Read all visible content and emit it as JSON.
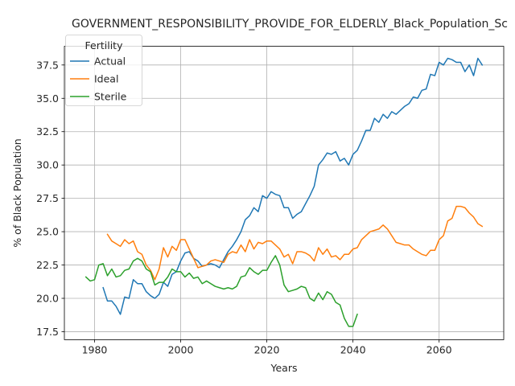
{
  "chart_data": {
    "type": "line",
    "title": "GOVERNMENT_RESPONSIBILITY_PROVIDE_FOR_ELDERLY_Black_Population_Sc",
    "xlabel": "Years",
    "ylabel": "% of Black Population",
    "xlim": [
      1973,
      2075
    ],
    "ylim": [
      16.9,
      38.9
    ],
    "x_ticks": [
      1980,
      2000,
      2020,
      2040,
      2060
    ],
    "x_tick_labels": [
      "1980",
      "2000",
      "2020",
      "2040",
      "2060"
    ],
    "y_ticks": [
      17.5,
      20.0,
      22.5,
      25.0,
      27.5,
      30.0,
      32.5,
      35.0,
      37.5
    ],
    "y_tick_labels": [
      "17.5",
      "20.0",
      "22.5",
      "25.0",
      "27.5",
      "30.0",
      "32.5",
      "35.0",
      "37.5"
    ],
    "grid": true,
    "legend": {
      "title": "Fertility",
      "placement": "top-left"
    },
    "series": [
      {
        "name": "Actual",
        "color": "#1f77b4",
        "points": [
          [
            1982,
            20.8
          ],
          [
            1983,
            19.8
          ],
          [
            1984,
            19.8
          ],
          [
            1985,
            19.4
          ],
          [
            1986,
            18.8
          ],
          [
            1987,
            20.1
          ],
          [
            1988,
            20.0
          ],
          [
            1989,
            21.4
          ],
          [
            1990,
            21.1
          ],
          [
            1991,
            21.1
          ],
          [
            1992,
            20.5
          ],
          [
            1993,
            20.2
          ],
          [
            1994,
            20.0
          ],
          [
            1995,
            20.3
          ],
          [
            1996,
            21.2
          ],
          [
            1997,
            20.9
          ],
          [
            1998,
            21.8
          ],
          [
            1999,
            22.0
          ],
          [
            2000,
            22.8
          ],
          [
            2001,
            23.4
          ],
          [
            2002,
            23.5
          ],
          [
            2003,
            23.0
          ],
          [
            2004,
            22.8
          ],
          [
            2005,
            22.4
          ],
          [
            2006,
            22.5
          ],
          [
            2007,
            22.6
          ],
          [
            2008,
            22.5
          ],
          [
            2009,
            22.3
          ],
          [
            2010,
            22.9
          ],
          [
            2011,
            23.5
          ],
          [
            2012,
            23.9
          ],
          [
            2013,
            24.4
          ],
          [
            2014,
            25.0
          ],
          [
            2015,
            25.9
          ],
          [
            2016,
            26.2
          ],
          [
            2017,
            26.8
          ],
          [
            2018,
            26.5
          ],
          [
            2019,
            27.7
          ],
          [
            2020,
            27.5
          ],
          [
            2021,
            28.0
          ],
          [
            2022,
            27.8
          ],
          [
            2023,
            27.7
          ],
          [
            2024,
            26.8
          ],
          [
            2025,
            26.8
          ],
          [
            2026,
            26.0
          ],
          [
            2027,
            26.3
          ],
          [
            2028,
            26.5
          ],
          [
            2029,
            27.1
          ],
          [
            2030,
            27.7
          ],
          [
            2031,
            28.4
          ],
          [
            2032,
            30.0
          ],
          [
            2033,
            30.4
          ],
          [
            2034,
            30.9
          ],
          [
            2035,
            30.8
          ],
          [
            2036,
            31.0
          ],
          [
            2037,
            30.3
          ],
          [
            2038,
            30.5
          ],
          [
            2039,
            30.0
          ],
          [
            2040,
            30.8
          ],
          [
            2041,
            31.1
          ],
          [
            2042,
            31.8
          ],
          [
            2043,
            32.6
          ],
          [
            2044,
            32.6
          ],
          [
            2045,
            33.5
          ],
          [
            2046,
            33.2
          ],
          [
            2047,
            33.8
          ],
          [
            2048,
            33.5
          ],
          [
            2049,
            34.0
          ],
          [
            2050,
            33.8
          ],
          [
            2051,
            34.1
          ],
          [
            2052,
            34.4
          ],
          [
            2053,
            34.6
          ],
          [
            2054,
            35.1
          ],
          [
            2055,
            35.0
          ],
          [
            2056,
            35.6
          ],
          [
            2057,
            35.7
          ],
          [
            2058,
            36.8
          ],
          [
            2059,
            36.7
          ],
          [
            2060,
            37.7
          ],
          [
            2061,
            37.5
          ],
          [
            2062,
            38.0
          ],
          [
            2063,
            37.9
          ],
          [
            2064,
            37.7
          ],
          [
            2065,
            37.7
          ],
          [
            2066,
            37.0
          ],
          [
            2067,
            37.5
          ],
          [
            2068,
            36.7
          ],
          [
            2069,
            38.0
          ],
          [
            2070,
            37.5
          ]
        ]
      },
      {
        "name": "Ideal",
        "color": "#ff7f0e",
        "points": [
          [
            1983,
            24.8
          ],
          [
            1984,
            24.3
          ],
          [
            1985,
            24.1
          ],
          [
            1986,
            23.9
          ],
          [
            1987,
            24.4
          ],
          [
            1988,
            24.1
          ],
          [
            1989,
            24.3
          ],
          [
            1990,
            23.5
          ],
          [
            1991,
            23.3
          ],
          [
            1992,
            22.5
          ],
          [
            1993,
            22.1
          ],
          [
            1994,
            21.4
          ],
          [
            1995,
            22.2
          ],
          [
            1996,
            23.8
          ],
          [
            1997,
            23.1
          ],
          [
            1998,
            23.9
          ],
          [
            1999,
            23.6
          ],
          [
            2000,
            24.4
          ],
          [
            2001,
            24.4
          ],
          [
            2002,
            23.7
          ],
          [
            2003,
            23.0
          ],
          [
            2004,
            22.3
          ],
          [
            2005,
            22.4
          ],
          [
            2006,
            22.5
          ],
          [
            2007,
            22.8
          ],
          [
            2008,
            22.9
          ],
          [
            2009,
            22.8
          ],
          [
            2010,
            22.7
          ],
          [
            2011,
            23.3
          ],
          [
            2012,
            23.5
          ],
          [
            2013,
            23.4
          ],
          [
            2014,
            24.0
          ],
          [
            2015,
            23.5
          ],
          [
            2016,
            24.4
          ],
          [
            2017,
            23.7
          ],
          [
            2018,
            24.2
          ],
          [
            2019,
            24.1
          ],
          [
            2020,
            24.3
          ],
          [
            2021,
            24.3
          ],
          [
            2022,
            24.0
          ],
          [
            2023,
            23.7
          ],
          [
            2024,
            23.1
          ],
          [
            2025,
            23.3
          ],
          [
            2026,
            22.6
          ],
          [
            2027,
            23.5
          ],
          [
            2028,
            23.5
          ],
          [
            2029,
            23.4
          ],
          [
            2030,
            23.2
          ],
          [
            2031,
            22.8
          ],
          [
            2032,
            23.8
          ],
          [
            2033,
            23.3
          ],
          [
            2034,
            23.7
          ],
          [
            2035,
            23.1
          ],
          [
            2036,
            23.2
          ],
          [
            2037,
            22.9
          ],
          [
            2038,
            23.3
          ],
          [
            2039,
            23.3
          ],
          [
            2040,
            23.7
          ],
          [
            2041,
            23.8
          ],
          [
            2042,
            24.4
          ],
          [
            2043,
            24.7
          ],
          [
            2044,
            25.0
          ],
          [
            2045,
            25.1
          ],
          [
            2046,
            25.2
          ],
          [
            2047,
            25.5
          ],
          [
            2048,
            25.2
          ],
          [
            2049,
            24.7
          ],
          [
            2050,
            24.2
          ],
          [
            2051,
            24.1
          ],
          [
            2052,
            24.0
          ],
          [
            2053,
            24.0
          ],
          [
            2054,
            23.7
          ],
          [
            2055,
            23.5
          ],
          [
            2056,
            23.3
          ],
          [
            2057,
            23.2
          ],
          [
            2058,
            23.6
          ],
          [
            2059,
            23.6
          ],
          [
            2060,
            24.4
          ],
          [
            2061,
            24.7
          ],
          [
            2062,
            25.8
          ],
          [
            2063,
            26.0
          ],
          [
            2064,
            26.9
          ],
          [
            2065,
            26.9
          ],
          [
            2066,
            26.8
          ],
          [
            2067,
            26.4
          ],
          [
            2068,
            26.1
          ],
          [
            2069,
            25.6
          ],
          [
            2070,
            25.4
          ]
        ]
      },
      {
        "name": "Sterile",
        "color": "#2ca02c",
        "points": [
          [
            1978,
            21.6
          ],
          [
            1979,
            21.3
          ],
          [
            1980,
            21.4
          ],
          [
            1981,
            22.5
          ],
          [
            1982,
            22.6
          ],
          [
            1983,
            21.7
          ],
          [
            1984,
            22.2
          ],
          [
            1985,
            21.6
          ],
          [
            1986,
            21.7
          ],
          [
            1987,
            22.1
          ],
          [
            1988,
            22.2
          ],
          [
            1989,
            22.8
          ],
          [
            1990,
            23.0
          ],
          [
            1991,
            22.8
          ],
          [
            1992,
            22.2
          ],
          [
            1993,
            22.0
          ],
          [
            1994,
            21.0
          ],
          [
            1995,
            21.2
          ],
          [
            1996,
            21.2
          ],
          [
            1997,
            21.6
          ],
          [
            1998,
            22.2
          ],
          [
            1999,
            22.0
          ],
          [
            2000,
            22.0
          ],
          [
            2001,
            21.6
          ],
          [
            2002,
            21.9
          ],
          [
            2003,
            21.5
          ],
          [
            2004,
            21.6
          ],
          [
            2005,
            21.1
          ],
          [
            2006,
            21.3
          ],
          [
            2007,
            21.1
          ],
          [
            2008,
            20.9
          ],
          [
            2009,
            20.8
          ],
          [
            2010,
            20.7
          ],
          [
            2011,
            20.8
          ],
          [
            2012,
            20.7
          ],
          [
            2013,
            20.9
          ],
          [
            2014,
            21.6
          ],
          [
            2015,
            21.7
          ],
          [
            2016,
            22.3
          ],
          [
            2017,
            22.0
          ],
          [
            2018,
            21.8
          ],
          [
            2019,
            22.1
          ],
          [
            2020,
            22.1
          ],
          [
            2021,
            22.7
          ],
          [
            2022,
            23.2
          ],
          [
            2023,
            22.5
          ],
          [
            2024,
            21.0
          ],
          [
            2025,
            20.5
          ],
          [
            2026,
            20.6
          ],
          [
            2027,
            20.7
          ],
          [
            2028,
            20.9
          ],
          [
            2029,
            20.8
          ],
          [
            2030,
            20.0
          ],
          [
            2031,
            19.8
          ],
          [
            2032,
            20.4
          ],
          [
            2033,
            19.9
          ],
          [
            2034,
            20.5
          ],
          [
            2035,
            20.3
          ],
          [
            2036,
            19.7
          ],
          [
            2037,
            19.5
          ],
          [
            2038,
            18.5
          ],
          [
            2039,
            17.9
          ],
          [
            2040,
            17.9
          ],
          [
            2041,
            18.8
          ]
        ]
      }
    ]
  }
}
